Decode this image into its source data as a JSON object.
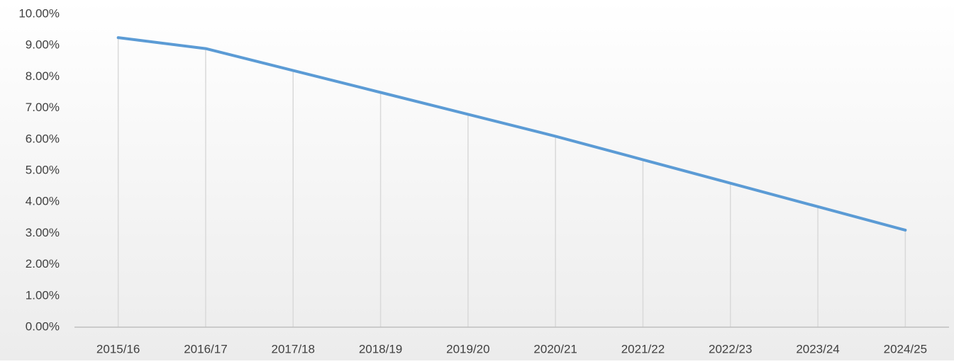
{
  "chart_data": {
    "type": "line",
    "categories": [
      "2015/16",
      "2016/17",
      "2017/18",
      "2018/19",
      "2019/20",
      "2020/21",
      "2021/22",
      "2022/23",
      "2023/24",
      "2024/25"
    ],
    "values": [
      9.25,
      8.9,
      8.2,
      7.5,
      6.8,
      6.1,
      5.35,
      4.6,
      3.85,
      3.1
    ],
    "color": "#5b9bd5",
    "ylim": [
      0,
      10
    ],
    "yticks": [
      {
        "value": 0,
        "label": "0.00%"
      },
      {
        "value": 1,
        "label": "1.00%"
      },
      {
        "value": 2,
        "label": "2.00%"
      },
      {
        "value": 3,
        "label": "3.00%"
      },
      {
        "value": 4,
        "label": "4.00%"
      },
      {
        "value": 5,
        "label": "5.00%"
      },
      {
        "value": 6,
        "label": "6.00%"
      },
      {
        "value": 7,
        "label": "7.00%"
      },
      {
        "value": 8,
        "label": "8.00%"
      },
      {
        "value": 9,
        "label": "9.00%"
      },
      {
        "value": 10,
        "label": "10.00%"
      }
    ],
    "drop_lines": true
  }
}
